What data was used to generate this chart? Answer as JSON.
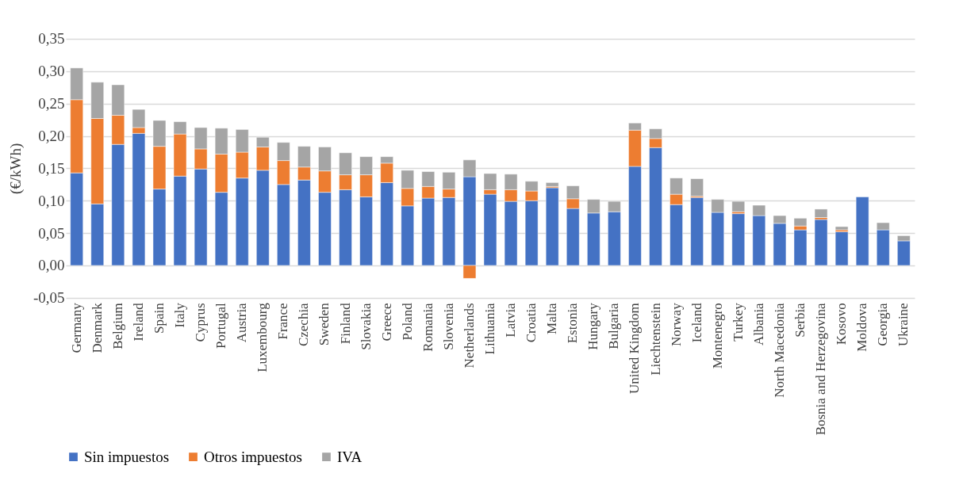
{
  "chart_data": {
    "type": "bar",
    "stacked": true,
    "ylabel": "(€/kWh)",
    "categories": [
      "Germany",
      "Denmark",
      "Belgium",
      "Ireland",
      "Spain",
      "Italy",
      "Cyprus",
      "Portugal",
      "Austria",
      "Luxembourg",
      "France",
      "Czechia",
      "Sweden",
      "Finland",
      "Slovakia",
      "Greece",
      "Poland",
      "Romania",
      "Slovenia",
      "Netherlands",
      "Lithuania",
      "Latvia",
      "Croatia",
      "Malta",
      "Estonia",
      "Hungary",
      "Bulgaria",
      "United Kingdom",
      "Liechtenstein",
      "Norway",
      "Iceland",
      "Montenegro",
      "Turkey",
      "Albania",
      "North Macedonia",
      "Serbia",
      "Bosnia and Herzegovina",
      "Kosovo",
      "Moldova",
      "Georgia",
      "Ukraine"
    ],
    "series": [
      {
        "name": "Sin impuestos",
        "color": "#4472c4",
        "values": [
          0.143,
          0.095,
          0.187,
          0.204,
          0.118,
          0.138,
          0.149,
          0.113,
          0.135,
          0.147,
          0.125,
          0.132,
          0.113,
          0.117,
          0.106,
          0.128,
          0.092,
          0.104,
          0.105,
          0.137,
          0.11,
          0.099,
          0.1,
          0.12,
          0.088,
          0.081,
          0.083,
          0.153,
          0.182,
          0.094,
          0.105,
          0.082,
          0.08,
          0.077,
          0.065,
          0.055,
          0.071,
          0.052,
          0.106,
          0.055,
          0.038
        ]
      },
      {
        "name": "Otros impuestos",
        "color": "#ed7d31",
        "values": [
          0.113,
          0.132,
          0.045,
          0.009,
          0.066,
          0.065,
          0.031,
          0.059,
          0.04,
          0.036,
          0.037,
          0.02,
          0.033,
          0.023,
          0.034,
          0.03,
          0.027,
          0.018,
          0.013,
          -0.02,
          0.007,
          0.018,
          0.015,
          0.002,
          0.015,
          null,
          null,
          0.056,
          0.014,
          0.016,
          0.002,
          null,
          0.003,
          null,
          null,
          0.006,
          0.003,
          0.003,
          null,
          null,
          null
        ]
      },
      {
        "name": "IVA",
        "color": "#a5a5a5",
        "values": [
          0.049,
          0.056,
          0.047,
          0.028,
          0.04,
          0.019,
          0.033,
          0.04,
          0.035,
          0.015,
          0.028,
          0.032,
          0.037,
          0.034,
          0.028,
          0.01,
          0.028,
          0.023,
          0.026,
          0.026,
          0.025,
          0.024,
          0.015,
          0.006,
          0.02,
          0.021,
          0.016,
          0.011,
          0.015,
          0.025,
          0.027,
          0.02,
          0.016,
          0.016,
          0.012,
          0.012,
          0.013,
          0.005,
          null,
          0.011,
          0.008
        ]
      }
    ],
    "ylim": [
      -0.05,
      0.35
    ],
    "yticks": [
      {
        "value": -0.05,
        "label": "-0,05"
      },
      {
        "value": 0,
        "label": "0,00"
      },
      {
        "value": 0.05,
        "label": "0,05"
      },
      {
        "value": 0.1,
        "label": "0,10"
      },
      {
        "value": 0.15,
        "label": "0,15"
      },
      {
        "value": 0.2,
        "label": "0,20"
      },
      {
        "value": 0.25,
        "label": "0,25"
      },
      {
        "value": 0.3,
        "label": "0,30"
      },
      {
        "value": 0.35,
        "label": "0,35"
      }
    ],
    "grid": "y",
    "legend": "bottom"
  }
}
